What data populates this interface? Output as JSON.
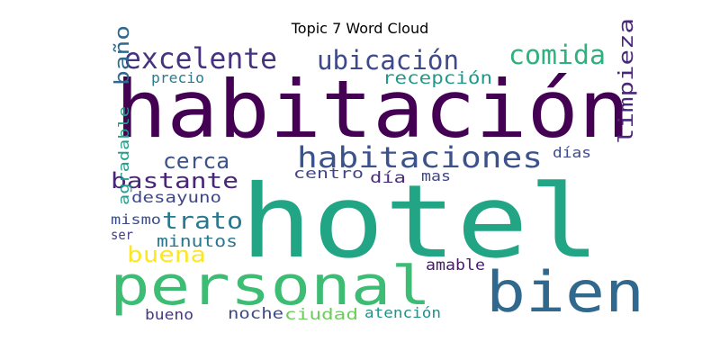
{
  "title": "Topic 7 Word Cloud",
  "words": [
    {
      "text": "habitación",
      "color": "#440154"
    },
    {
      "text": "hotel",
      "color": "#21a585"
    },
    {
      "text": "personal",
      "color": "#3dbc74"
    },
    {
      "text": "bien",
      "color": "#31688e"
    },
    {
      "text": "habitaciones",
      "color": "#3b528b"
    },
    {
      "text": "excelente",
      "color": "#46327e"
    },
    {
      "text": "ubicación",
      "color": "#3e4989"
    },
    {
      "text": "comida",
      "color": "#2db27d"
    },
    {
      "text": "recepción",
      "color": "#1f9a8a"
    },
    {
      "text": "precio",
      "color": "#287d8e"
    },
    {
      "text": "baño",
      "color": "#30698e"
    },
    {
      "text": "cerca",
      "color": "#3b528b"
    },
    {
      "text": "bastante",
      "color": "#482576"
    },
    {
      "text": "limpieza",
      "color": "#482878"
    },
    {
      "text": "días",
      "color": "#3e4a89"
    },
    {
      "text": "centro",
      "color": "#404688"
    },
    {
      "text": "día",
      "color": "#472d7b"
    },
    {
      "text": "mas",
      "color": "#404588"
    },
    {
      "text": "desayuno",
      "color": "#3f4788"
    },
    {
      "text": "trato",
      "color": "#2a788e"
    },
    {
      "text": "mismo",
      "color": "#3d4d8a"
    },
    {
      "text": "agradable",
      "color": "#1f9e89"
    },
    {
      "text": "ser",
      "color": "#433e85"
    },
    {
      "text": "minutos",
      "color": "#2a768e"
    },
    {
      "text": "buena",
      "color": "#fde725"
    },
    {
      "text": "amable",
      "color": "#481a6c"
    },
    {
      "text": "bueno",
      "color": "#443983"
    },
    {
      "text": "noche",
      "color": "#3e4989"
    },
    {
      "text": "ciudad",
      "color": "#6ccd5a"
    },
    {
      "text": "atención",
      "color": "#20928c"
    }
  ]
}
